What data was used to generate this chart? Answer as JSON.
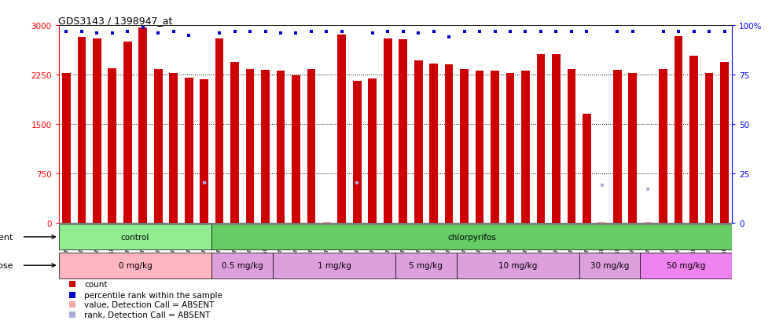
{
  "title": "GDS3143 / 1398947_at",
  "samples": [
    "GSM246129",
    "GSM246130",
    "GSM246131",
    "GSM246145",
    "GSM246146",
    "GSM246147",
    "GSM246148",
    "GSM246157",
    "GSM246158",
    "GSM246159",
    "GSM246149",
    "GSM246150",
    "GSM246151",
    "GSM246152",
    "GSM246132",
    "GSM246133",
    "GSM246134",
    "GSM246135",
    "GSM246160",
    "GSM246161",
    "GSM246162",
    "GSM246163",
    "GSM246164",
    "GSM246165",
    "GSM246166",
    "GSM246167",
    "GSM246136",
    "GSM246137",
    "GSM246138",
    "GSM246139",
    "GSM246140",
    "GSM246168",
    "GSM246169",
    "GSM246170",
    "GSM246171",
    "GSM246154",
    "GSM246155",
    "GSM246156",
    "GSM246172",
    "GSM246173",
    "GSM246141",
    "GSM246142",
    "GSM246143",
    "GSM246144"
  ],
  "counts": [
    2280,
    2820,
    2800,
    2340,
    2750,
    2970,
    2330,
    2280,
    2200,
    2180,
    2800,
    2440,
    2330,
    2320,
    2310,
    2240,
    2330,
    5,
    2860,
    2150,
    2190,
    2800,
    2790,
    2470,
    2420,
    2400,
    2330,
    2310,
    2310,
    2280,
    2310,
    2560,
    2560,
    2330,
    1660,
    5,
    2320,
    2280,
    5,
    2330,
    2830,
    2540,
    2270,
    2440
  ],
  "ranks": [
    97,
    97,
    96,
    96,
    97,
    99,
    96,
    97,
    95,
    20,
    96,
    97,
    97,
    97,
    96,
    96,
    97,
    97,
    97,
    20,
    96,
    97,
    97,
    96,
    97,
    94,
    97,
    97,
    97,
    97,
    97,
    97,
    97,
    97,
    97,
    19,
    97,
    97,
    17,
    97,
    97,
    97,
    97,
    97
  ],
  "absent_count_indices": [
    17,
    35,
    38
  ],
  "absent_rank_indices": [
    9,
    19,
    35,
    38
  ],
  "agent_groups": [
    {
      "label": "control",
      "start": 0,
      "end": 9,
      "color": "#90EE90"
    },
    {
      "label": "chlorpyrifos",
      "start": 10,
      "end": 43,
      "color": "#66CC66"
    }
  ],
  "dose_groups": [
    {
      "label": "0 mg/kg",
      "start": 0,
      "end": 9,
      "color": "#FFB6C1"
    },
    {
      "label": "0.5 mg/kg",
      "start": 10,
      "end": 13,
      "color": "#DDA0DD"
    },
    {
      "label": "1 mg/kg",
      "start": 14,
      "end": 21,
      "color": "#DDA0DD"
    },
    {
      "label": "5 mg/kg",
      "start": 22,
      "end": 25,
      "color": "#DDA0DD"
    },
    {
      "label": "10 mg/kg",
      "start": 26,
      "end": 33,
      "color": "#DDA0DD"
    },
    {
      "label": "30 mg/kg",
      "start": 34,
      "end": 37,
      "color": "#DDA0DD"
    },
    {
      "label": "50 mg/kg",
      "start": 38,
      "end": 43,
      "color": "#EE82EE"
    }
  ],
  "ylim_left": [
    0,
    3000
  ],
  "ylim_right": [
    0,
    100
  ],
  "yticks_left": [
    0,
    750,
    1500,
    2250,
    3000
  ],
  "yticks_right": [
    0,
    25,
    50,
    75,
    100
  ],
  "bar_color": "#CC0000",
  "rank_color": "#0000CC",
  "absent_bar_color": "#FFAAAA",
  "absent_rank_color": "#AAAADD",
  "background_color": "#FFFFFF",
  "legend": [
    {
      "color": "#CC0000",
      "marker": "s",
      "label": "count"
    },
    {
      "color": "#0000CC",
      "marker": "s",
      "label": "percentile rank within the sample"
    },
    {
      "color": "#FFAAAA",
      "marker": "s",
      "label": "value, Detection Call = ABSENT"
    },
    {
      "color": "#AAAADD",
      "marker": "s",
      "label": "rank, Detection Call = ABSENT"
    }
  ]
}
